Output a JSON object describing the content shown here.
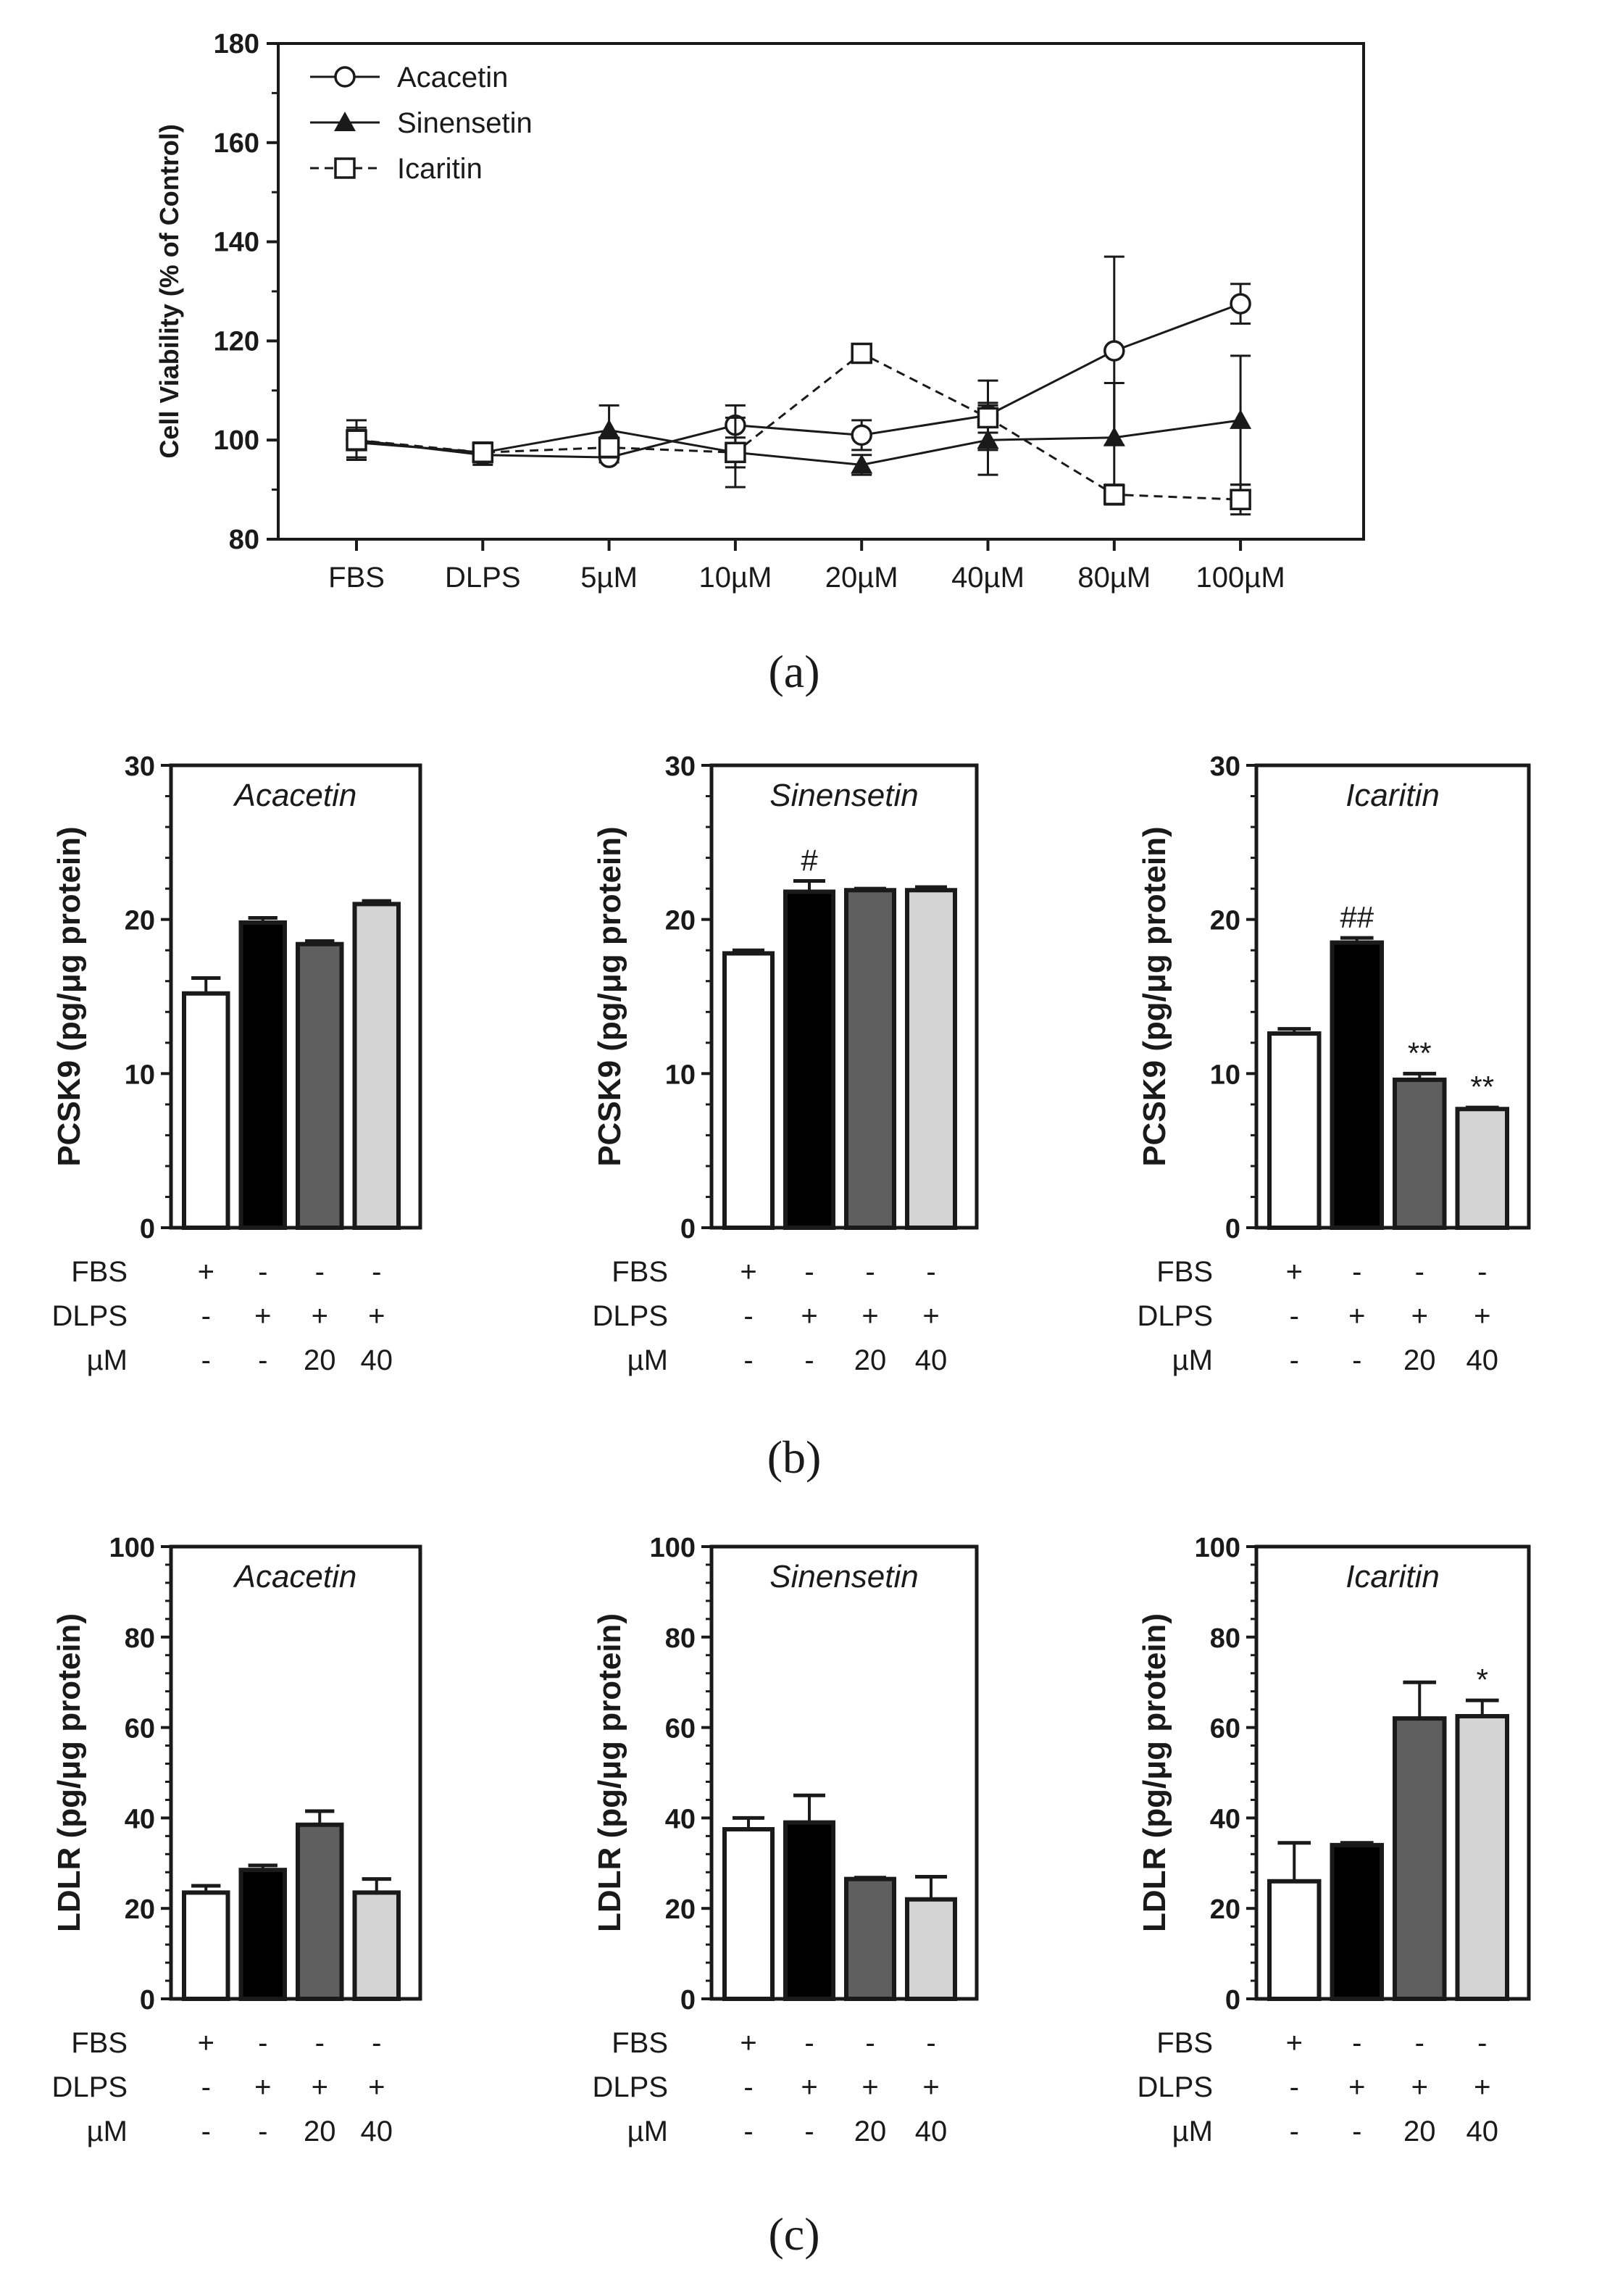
{
  "subfigure_labels": [
    "(a)",
    "(b)",
    "(c)"
  ],
  "chart_data": [
    {
      "id": "a",
      "type": "line",
      "title": "",
      "xlabel": "",
      "ylabel": "Cell Viability (% of Control)",
      "ylim": [
        80,
        180
      ],
      "yticks": [
        80,
        100,
        120,
        140,
        160,
        180
      ],
      "categories": [
        "FBS",
        "DLPS",
        "5µM",
        "10µM",
        "20µM",
        "40µM",
        "80µM",
        "100µM"
      ],
      "legend": "top-left",
      "series": [
        {
          "name": "Acacetin",
          "marker": "open-circle",
          "line": "solid",
          "values": [
            100,
            97,
            96.5,
            103,
            101,
            105,
            118,
            127.5
          ],
          "errors": [
            4,
            2,
            1,
            4,
            3,
            7,
            19,
            4
          ]
        },
        {
          "name": "Sinensetin",
          "marker": "filled-triangle",
          "line": "solid",
          "values": [
            99.5,
            97.5,
            102,
            97.5,
            95,
            100,
            100.5,
            104
          ],
          "errors": [
            3,
            2,
            5,
            7,
            2,
            7,
            11,
            13
          ]
        },
        {
          "name": "Icaritin",
          "marker": "open-square",
          "line": "dashed",
          "values": [
            100,
            97.5,
            98.5,
            97.5,
            117.5,
            104.5,
            89,
            88
          ],
          "errors": [
            2,
            2,
            2,
            3,
            1,
            3,
            2,
            3
          ]
        }
      ]
    },
    {
      "id": "b1",
      "type": "bar",
      "title": "Acacetin",
      "ylabel": "PCSK9 (pg/μg protein)",
      "ylim": [
        0,
        30
      ],
      "yticks": [
        0,
        10,
        20,
        30
      ],
      "categories": [
        "FBS",
        "DLPS",
        "DLPS + 20 µM",
        "DLPS + 40 µM"
      ],
      "values": [
        15.2,
        19.8,
        18.4,
        21.0
      ],
      "errors": [
        1.0,
        0.3,
        0.2,
        0.2
      ],
      "annotations": [
        "",
        "",
        "",
        ""
      ],
      "conditions": {
        "FBS": [
          "+",
          "-",
          "-",
          "-"
        ],
        "DLPS": [
          "-",
          "+",
          "+",
          "+"
        ],
        "µM": [
          "-",
          "-",
          "20",
          "40"
        ]
      }
    },
    {
      "id": "b2",
      "type": "bar",
      "title": "Sinensetin",
      "ylabel": "PCSK9 (pg/μg protein)",
      "ylim": [
        0,
        30
      ],
      "yticks": [
        0,
        10,
        20,
        30
      ],
      "categories": [
        "FBS",
        "DLPS",
        "DLPS + 20 µM",
        "DLPS + 40 µM"
      ],
      "values": [
        17.8,
        21.8,
        21.9,
        21.9
      ],
      "errors": [
        0.2,
        0.7,
        0.1,
        0.2
      ],
      "annotations": [
        "",
        "#",
        "",
        ""
      ],
      "conditions": {
        "FBS": [
          "+",
          "-",
          "-",
          "-"
        ],
        "DLPS": [
          "-",
          "+",
          "+",
          "+"
        ],
        "µM": [
          "-",
          "-",
          "20",
          "40"
        ]
      }
    },
    {
      "id": "b3",
      "type": "bar",
      "title": "Icaritin",
      "ylabel": "PCSK9 (pg/μg protein)",
      "ylim": [
        0,
        30
      ],
      "yticks": [
        0,
        10,
        20,
        30
      ],
      "categories": [
        "FBS",
        "DLPS",
        "DLPS + 20 µM",
        "DLPS + 40 µM"
      ],
      "values": [
        12.6,
        18.5,
        9.6,
        7.7
      ],
      "errors": [
        0.3,
        0.3,
        0.4,
        0.1
      ],
      "annotations": [
        "",
        "##",
        "**",
        "**"
      ],
      "conditions": {
        "FBS": [
          "+",
          "-",
          "-",
          "-"
        ],
        "DLPS": [
          "-",
          "+",
          "+",
          "+"
        ],
        "µM": [
          "-",
          "-",
          "20",
          "40"
        ]
      }
    },
    {
      "id": "c1",
      "type": "bar",
      "title": "Acacetin",
      "ylabel": "LDLR (pg/μg protein)",
      "ylim": [
        0,
        100
      ],
      "yticks": [
        0,
        20,
        40,
        60,
        80,
        100
      ],
      "categories": [
        "FBS",
        "DLPS",
        "DLPS + 20 µM",
        "DLPS + 40 µM"
      ],
      "values": [
        23.5,
        28.5,
        38.5,
        23.5
      ],
      "errors": [
        1.5,
        1.0,
        3.0,
        3.0
      ],
      "annotations": [
        "",
        "",
        "",
        ""
      ],
      "conditions": {
        "FBS": [
          "+",
          "-",
          "-",
          "-"
        ],
        "DLPS": [
          "-",
          "+",
          "+",
          "+"
        ],
        "µM": [
          "-",
          "-",
          "20",
          "40"
        ]
      }
    },
    {
      "id": "c2",
      "type": "bar",
      "title": "Sinensetin",
      "ylabel": "LDLR (pg/μg protein)",
      "ylim": [
        0,
        100
      ],
      "yticks": [
        0,
        20,
        40,
        60,
        80,
        100
      ],
      "categories": [
        "FBS",
        "DLPS",
        "DLPS + 20 µM",
        "DLPS + 40 µM"
      ],
      "values": [
        37.5,
        39.0,
        26.5,
        22.0
      ],
      "errors": [
        2.5,
        6.0,
        0.3,
        5.0
      ],
      "annotations": [
        "",
        "",
        "",
        ""
      ],
      "conditions": {
        "FBS": [
          "+",
          "-",
          "-",
          "-"
        ],
        "DLPS": [
          "-",
          "+",
          "+",
          "+"
        ],
        "µM": [
          "-",
          "-",
          "20",
          "40"
        ]
      }
    },
    {
      "id": "c3",
      "type": "bar",
      "title": "Icaritin",
      "ylabel": "LDLR (pg/μg protein)",
      "ylim": [
        0,
        100
      ],
      "yticks": [
        0,
        20,
        40,
        60,
        80,
        100
      ],
      "categories": [
        "FBS",
        "DLPS",
        "DLPS + 20 µM",
        "DLPS + 40 µM"
      ],
      "values": [
        26.0,
        34.0,
        62.0,
        62.5
      ],
      "errors": [
        8.5,
        0.5,
        8.0,
        3.5
      ],
      "annotations": [
        "",
        "",
        "",
        "*"
      ],
      "conditions": {
        "FBS": [
          "+",
          "-",
          "-",
          "-"
        ],
        "DLPS": [
          "-",
          "+",
          "+",
          "+"
        ],
        "µM": [
          "-",
          "-",
          "20",
          "40"
        ]
      }
    }
  ],
  "colors": {
    "bars": [
      "#ffffff",
      "#000000",
      "#5f5f5f",
      "#d4d4d4"
    ],
    "ink": "#1a1a1a"
  }
}
